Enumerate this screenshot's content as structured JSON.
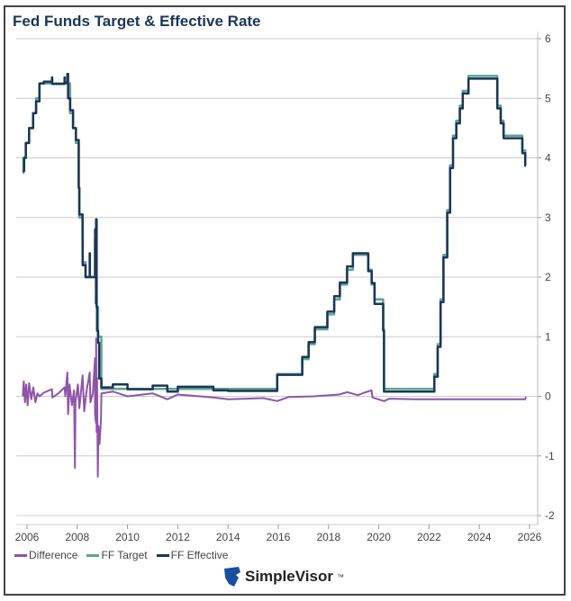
{
  "chart_data": {
    "type": "line",
    "title": "Fed Funds Target & Effective Rate",
    "xlim": [
      2005.8,
      2026.3
    ],
    "ylim": [
      -2,
      6
    ],
    "x_ticks": [
      "2006",
      "2008",
      "2010",
      "2012",
      "2014",
      "2016",
      "2018",
      "2020",
      "2022",
      "2024",
      "2026"
    ],
    "y_ticks": [
      "6",
      "5",
      "4",
      "3",
      "2",
      "1",
      "0",
      "-1",
      "-2"
    ],
    "y_axis_side": "right",
    "grid": true,
    "legend": "bottom-left",
    "series": [
      {
        "name": "Difference",
        "color": "#8e54a9",
        "step": false,
        "points": [
          [
            "2005-11-01",
            0.0
          ],
          [
            "2005-11-15",
            0.25
          ],
          [
            "2005-12-01",
            -0.1
          ],
          [
            "2005-12-20",
            0.2
          ],
          [
            "2006-01-10",
            -0.15
          ],
          [
            "2006-02-01",
            0.22
          ],
          [
            "2006-03-01",
            -0.05
          ],
          [
            "2006-04-01",
            0.15
          ],
          [
            "2006-05-01",
            -0.1
          ],
          [
            "2006-06-01",
            0.05
          ],
          [
            "2006-07-01",
            0.0
          ],
          [
            "2006-09-01",
            0.06
          ],
          [
            "2006-12-29",
            0.12
          ],
          [
            "2007-01-05",
            -0.02
          ],
          [
            "2007-04-01",
            0.05
          ],
          [
            "2007-06-29",
            0.15
          ],
          [
            "2007-07-10",
            0.0
          ],
          [
            "2007-08-09",
            0.4
          ],
          [
            "2007-08-20",
            -0.3
          ],
          [
            "2007-09-10",
            0.2
          ],
          [
            "2007-10-15",
            -0.15
          ],
          [
            "2007-11-15",
            0.1
          ],
          [
            "2007-11-28",
            -1.2
          ],
          [
            "2007-12-05",
            -0.1
          ],
          [
            "2008-01-10",
            0.2
          ],
          [
            "2008-02-01",
            -0.2
          ],
          [
            "2008-03-18",
            0.35
          ],
          [
            "2008-04-10",
            -0.25
          ],
          [
            "2008-05-15",
            0.1
          ],
          [
            "2008-06-30",
            0.4
          ],
          [
            "2008-07-10",
            -0.1
          ],
          [
            "2008-08-15",
            0.05
          ],
          [
            "2008-09-15",
            0.64
          ],
          [
            "2008-09-16",
            -0.3
          ],
          [
            "2008-09-30",
            -0.45
          ],
          [
            "2008-10-01",
            0.97
          ],
          [
            "2008-10-09",
            -0.6
          ],
          [
            "2008-10-15",
            0.3
          ],
          [
            "2008-10-25",
            -1.35
          ],
          [
            "2008-11-05",
            -0.5
          ],
          [
            "2008-11-20",
            -0.8
          ],
          [
            "2008-12-10",
            -0.4
          ],
          [
            "2008-12-17",
            0.05
          ],
          [
            "2009-06-01",
            0.08
          ],
          [
            "2010-01-01",
            0.0
          ],
          [
            "2011-01-01",
            0.05
          ],
          [
            "2011-08-01",
            -0.05
          ],
          [
            "2012-01-01",
            0.03
          ],
          [
            "2013-06-01",
            -0.02
          ],
          [
            "2014-01-01",
            -0.05
          ],
          [
            "2015-06-01",
            -0.03
          ],
          [
            "2015-12-16",
            -0.08
          ],
          [
            "2016-06-01",
            -0.01
          ],
          [
            "2017-06-01",
            0.0
          ],
          [
            "2018-06-01",
            0.03
          ],
          [
            "2018-10-01",
            0.07
          ],
          [
            "2019-03-01",
            0.02
          ],
          [
            "2019-06-01",
            0.06
          ],
          [
            "2019-09-17",
            0.1
          ],
          [
            "2019-10-01",
            -0.02
          ],
          [
            "2020-03-16",
            -0.08
          ],
          [
            "2020-06-01",
            -0.04
          ],
          [
            "2021-06-01",
            -0.05
          ],
          [
            "2022-06-01",
            -0.05
          ],
          [
            "2024-01-01",
            -0.05
          ],
          [
            "2025-10-30",
            -0.05
          ],
          [
            "2025-11-10",
            -0.01
          ]
        ]
      },
      {
        "name": "FF Target",
        "color": "#5ba58f",
        "step": true,
        "points": [
          [
            "2005-11-01",
            3.75
          ],
          [
            "2005-11-10",
            4.0
          ],
          [
            "2005-12-13",
            4.25
          ],
          [
            "2006-01-31",
            4.5
          ],
          [
            "2006-03-28",
            4.75
          ],
          [
            "2006-05-10",
            5.0
          ],
          [
            "2006-06-29",
            5.25
          ],
          [
            "2007-09-18",
            4.75
          ],
          [
            "2007-10-31",
            4.5
          ],
          [
            "2007-12-11",
            4.25
          ],
          [
            "2008-01-22",
            3.5
          ],
          [
            "2008-01-30",
            3.0
          ],
          [
            "2008-03-18",
            2.25
          ],
          [
            "2008-04-30",
            2.0
          ],
          [
            "2008-10-08",
            1.5
          ],
          [
            "2008-10-29",
            1.0
          ],
          [
            "2008-12-16",
            0.125
          ],
          [
            "2015-12-16",
            0.375
          ],
          [
            "2016-12-14",
            0.625
          ],
          [
            "2017-03-15",
            0.875
          ],
          [
            "2017-06-14",
            1.125
          ],
          [
            "2017-12-13",
            1.375
          ],
          [
            "2018-03-21",
            1.625
          ],
          [
            "2018-06-13",
            1.875
          ],
          [
            "2018-09-26",
            2.125
          ],
          [
            "2018-12-19",
            2.375
          ],
          [
            "2019-07-31",
            2.125
          ],
          [
            "2019-09-18",
            1.875
          ],
          [
            "2019-10-30",
            1.625
          ],
          [
            "2020-03-03",
            1.125
          ],
          [
            "2020-03-15",
            0.125
          ],
          [
            "2022-03-16",
            0.375
          ],
          [
            "2022-05-04",
            0.875
          ],
          [
            "2022-06-15",
            1.625
          ],
          [
            "2022-07-27",
            2.375
          ],
          [
            "2022-09-21",
            3.125
          ],
          [
            "2022-11-02",
            3.875
          ],
          [
            "2022-12-14",
            4.375
          ],
          [
            "2023-02-01",
            4.625
          ],
          [
            "2023-03-22",
            4.875
          ],
          [
            "2023-05-03",
            5.125
          ],
          [
            "2023-07-26",
            5.375
          ],
          [
            "2024-09-18",
            4.875
          ],
          [
            "2024-11-07",
            4.625
          ],
          [
            "2024-12-18",
            4.375
          ],
          [
            "2025-09-17",
            4.125
          ],
          [
            "2025-10-29",
            3.875
          ],
          [
            "2025-11-10",
            3.875
          ]
        ]
      },
      {
        "name": "FF Effective",
        "color": "#1c3557",
        "step": true,
        "points": [
          [
            "2005-11-01",
            3.78
          ],
          [
            "2005-11-20",
            4.0
          ],
          [
            "2005-12-15",
            4.25
          ],
          [
            "2006-01-31",
            4.5
          ],
          [
            "2006-03-29",
            4.75
          ],
          [
            "2006-05-11",
            4.95
          ],
          [
            "2006-06-30",
            5.25
          ],
          [
            "2006-09-01",
            5.28
          ],
          [
            "2006-12-29",
            5.35
          ],
          [
            "2007-01-02",
            5.24
          ],
          [
            "2007-06-29",
            5.35
          ],
          [
            "2007-07-02",
            5.26
          ],
          [
            "2007-08-09",
            5.41
          ],
          [
            "2007-08-20",
            5.0
          ],
          [
            "2007-09-19",
            4.8
          ],
          [
            "2007-10-31",
            4.5
          ],
          [
            "2007-12-12",
            4.3
          ],
          [
            "2008-01-22",
            3.5
          ],
          [
            "2008-01-31",
            3.05
          ],
          [
            "2008-03-18",
            2.6
          ],
          [
            "2008-03-19",
            2.2
          ],
          [
            "2008-04-30",
            2.0
          ],
          [
            "2008-06-30",
            2.4
          ],
          [
            "2008-07-01",
            2.0
          ],
          [
            "2008-09-15",
            2.64
          ],
          [
            "2008-09-16",
            2.0
          ],
          [
            "2008-09-17",
            2.8
          ],
          [
            "2008-09-30",
            1.56
          ],
          [
            "2008-10-01",
            2.97
          ],
          [
            "2008-10-09",
            1.5
          ],
          [
            "2008-10-15",
            1.1
          ],
          [
            "2008-10-30",
            0.9
          ],
          [
            "2008-11-15",
            0.3
          ],
          [
            "2008-12-17",
            0.15
          ],
          [
            "2009-06-01",
            0.2
          ],
          [
            "2010-01-01",
            0.12
          ],
          [
            "2011-01-01",
            0.18
          ],
          [
            "2011-08-01",
            0.08
          ],
          [
            "2012-01-01",
            0.16
          ],
          [
            "2013-06-01",
            0.1
          ],
          [
            "2014-01-01",
            0.09
          ],
          [
            "2015-12-16",
            0.36
          ],
          [
            "2016-12-15",
            0.66
          ],
          [
            "2017-03-16",
            0.91
          ],
          [
            "2017-06-15",
            1.16
          ],
          [
            "2017-12-14",
            1.42
          ],
          [
            "2018-03-22",
            1.68
          ],
          [
            "2018-06-14",
            1.91
          ],
          [
            "2018-09-27",
            2.18
          ],
          [
            "2018-12-20",
            2.4
          ],
          [
            "2019-07-31",
            2.1
          ],
          [
            "2019-09-19",
            1.9
          ],
          [
            "2019-10-31",
            1.55
          ],
          [
            "2020-03-04",
            1.1
          ],
          [
            "2020-03-16",
            0.08
          ],
          [
            "2022-03-17",
            0.33
          ],
          [
            "2022-05-05",
            0.83
          ],
          [
            "2022-06-16",
            1.58
          ],
          [
            "2022-07-28",
            2.33
          ],
          [
            "2022-09-22",
            3.08
          ],
          [
            "2022-11-03",
            3.83
          ],
          [
            "2022-12-15",
            4.33
          ],
          [
            "2023-02-02",
            4.58
          ],
          [
            "2023-03-23",
            4.83
          ],
          [
            "2023-05-04",
            5.08
          ],
          [
            "2023-07-27",
            5.33
          ],
          [
            "2024-09-19",
            4.83
          ],
          [
            "2024-11-08",
            4.58
          ],
          [
            "2024-12-19",
            4.33
          ],
          [
            "2025-09-18",
            4.08
          ],
          [
            "2025-10-30",
            3.87
          ],
          [
            "2025-11-10",
            3.87
          ]
        ]
      }
    ]
  },
  "legend": [
    "Difference",
    "FF Target",
    "FF Effective"
  ],
  "logo": {
    "text": "SimpleVisor",
    "tm": "™"
  }
}
